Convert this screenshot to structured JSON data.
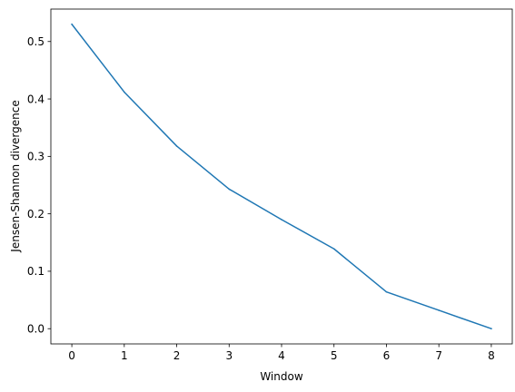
{
  "chart_data": {
    "type": "line",
    "title": "",
    "xlabel": "Window",
    "ylabel": "Jensen-Shannon divergence",
    "x": [
      0,
      1,
      2,
      3,
      4,
      5,
      6,
      7,
      8
    ],
    "series": [
      {
        "values": [
          0.53,
          0.412,
          0.318,
          0.243,
          0.19,
          0.139,
          0.064,
          0.032,
          0.0
        ],
        "color": "#1f77b4"
      }
    ],
    "xlim": [
      -0.4,
      8.4
    ],
    "ylim": [
      -0.0265,
      0.5565
    ],
    "xticks": [
      0,
      1,
      2,
      3,
      4,
      5,
      6,
      7,
      8
    ],
    "xtick_labels": [
      "0",
      "1",
      "2",
      "3",
      "4",
      "5",
      "6",
      "7",
      "8"
    ],
    "yticks": [
      0.0,
      0.1,
      0.2,
      0.3,
      0.4,
      0.5
    ],
    "ytick_labels": [
      "0.0",
      "0.1",
      "0.2",
      "0.3",
      "0.4",
      "0.5"
    ],
    "grid": false,
    "legend": "none"
  }
}
